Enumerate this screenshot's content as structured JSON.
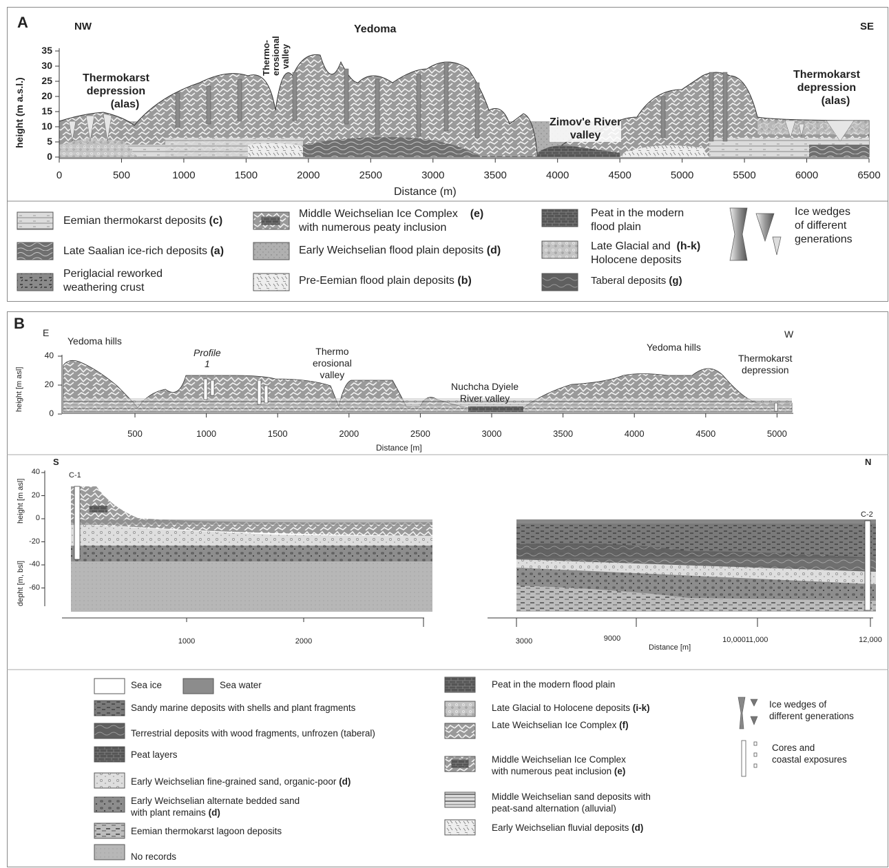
{
  "panel_a": {
    "letter": "A",
    "dir_left": "NW",
    "dir_right": "SE",
    "title": "Yedoma",
    "labels": {
      "thermokarst_left": [
        "Thermokarst",
        "depression",
        "(alas)"
      ],
      "thermo_valley": [
        "Thermo-",
        "erosional",
        "valley"
      ],
      "zimove": [
        "Zimov'e River",
        "valley"
      ],
      "thermokarst_right": [
        "Thermokarst",
        "depression",
        "(alas)"
      ]
    },
    "ylabel": "height (m a.s.l.)",
    "yticks": [
      "35",
      "30",
      "25",
      "20",
      "15",
      "10",
      "5",
      "0"
    ],
    "xticks": [
      "0",
      "500",
      "1000",
      "1500",
      "2000",
      "2500",
      "3000",
      "3500",
      "4000",
      "4500",
      "5000",
      "5500",
      "6000",
      "6500"
    ],
    "xlabel": "Distance (m)"
  },
  "legend_a": [
    {
      "text": "Eemian thermokarst deposits",
      "code": "(c)"
    },
    {
      "text": "Late Saalian ice-rich deposits",
      "code": "(a)"
    },
    {
      "text": "Periglacial reworked",
      "text2": "weathering crust",
      "code": ""
    },
    {
      "text": "Middle Weichselian Ice Complex",
      "text2": "with numerous peaty inclusion",
      "code": "(e)"
    },
    {
      "text": "Early Weichselian flood plain deposits",
      "code": "(d)"
    },
    {
      "text": "Pre-Eemian flood plain deposits",
      "code": "(b)"
    },
    {
      "text": "Peat in the modern",
      "text2": "flood plain",
      "code": ""
    },
    {
      "text": "Late Glacial and",
      "text2": "Holocene deposits",
      "code": "(h-k)"
    },
    {
      "text": "Taberal deposits",
      "code": "(g)"
    },
    {
      "text": "Ice wedges",
      "text2": "of different",
      "text3": "generations",
      "code": ""
    }
  ],
  "panel_b": {
    "letter": "B",
    "dir_left": "E",
    "dir_right": "W",
    "labels": {
      "yedoma_left": "Yedoma hills",
      "profile": [
        "Profile",
        "1"
      ],
      "thermo_valley": [
        "Thermo",
        "erosional",
        "valley"
      ],
      "nuchcha": [
        "Nuchcha Dyiele",
        "River valley"
      ],
      "yedoma_right": "Yedoma hills",
      "thermokarst": [
        "Thermokarst",
        "depression"
      ]
    },
    "ylabel": "height [m asl]",
    "yticks": [
      "40",
      "20",
      "0"
    ],
    "xticks": [
      "500",
      "1000",
      "1500",
      "2000",
      "2500",
      "3000",
      "3500",
      "4000",
      "4500",
      "5000"
    ],
    "xlabel": "Distance [m]"
  },
  "panel_c": {
    "dir_left": "S",
    "dir_right": "N",
    "core_left": "C-1",
    "core_right": "C-2",
    "ylabel_top": "height [m asl]",
    "ylabel_bottom": "depht [m, bsl]",
    "yticks": [
      "40",
      "20",
      "0",
      "-20",
      "-40",
      "-60"
    ],
    "xticks_left": [
      "1000",
      "2000"
    ],
    "xticks_right": [
      "3000",
      "9000",
      "10,000",
      "11,000",
      "12,000"
    ],
    "xlabel": "Distance [m]"
  },
  "legend_b": {
    "sea_ice": "Sea ice",
    "sea_water": "Sea water",
    "left": [
      {
        "text": "Sandy marine deposits with shells and plant fragments",
        "code": ""
      },
      {
        "text": "Terrestrial deposits with wood fragments, unfrozen (taberal)",
        "code": ""
      },
      {
        "text": "Peat layers",
        "code": ""
      },
      {
        "text": "Early Weichselian fine-grained sand, organic-poor",
        "code": "(d)"
      },
      {
        "text": "Early Weichselian alternate bedded sand",
        "text2": "with plant remains",
        "code": "(d)"
      },
      {
        "text": "Eemian thermokarst lagoon deposits",
        "code": ""
      },
      {
        "text": "No records",
        "code": ""
      }
    ],
    "right": [
      {
        "text": "Peat in the modern flood plain",
        "code": ""
      },
      {
        "text": "Late Glacial to Holocene deposits",
        "code": "(i-k)"
      },
      {
        "text": "Late  Weichselian Ice Complex",
        "code": "(f)"
      },
      {
        "text": "Middle Weichselian Ice Complex",
        "text2": "with numerous peat inclusion",
        "code": "(e)"
      },
      {
        "text": "Middle Weichselian sand deposits with",
        "text2": "peat-sand alternation (alluvial)",
        "code": ""
      },
      {
        "text": "Early Weichselian fluvial deposits",
        "code": "(d)"
      }
    ],
    "ice_wedges": [
      "Ice wedges of",
      "different generations"
    ],
    "cores": [
      "Cores and",
      "coastal exposures"
    ]
  }
}
